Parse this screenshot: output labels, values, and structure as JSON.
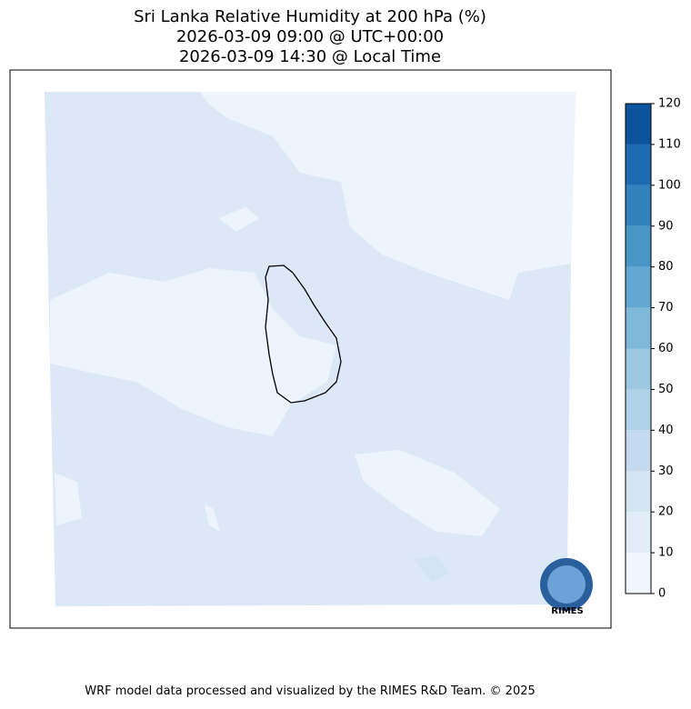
{
  "title": [
    "Sri Lanka Relative Humidity at 200 hPa (%)",
    "2026-03-09 09:00 @ UTC+00:00",
    "2026-03-09 14:30 @ Local Time"
  ],
  "colorbar": {
    "ticks": [
      0,
      10,
      20,
      30,
      40,
      50,
      60,
      70,
      80,
      90,
      100,
      110,
      120
    ],
    "colors": [
      "#f0f6fd",
      "#e1edf8",
      "#d3e4f3",
      "#c4daee",
      "#b0d2e8",
      "#9bc8e0",
      "#7fb9da",
      "#62a8d3",
      "#4895c8",
      "#3181bd",
      "#1d6bb0",
      "#0b539d",
      "#0a3a7a"
    ]
  },
  "logo": "RIMES",
  "footer": "WRF model data processed and visualized by the RIMES R&D Team. © 2025"
}
